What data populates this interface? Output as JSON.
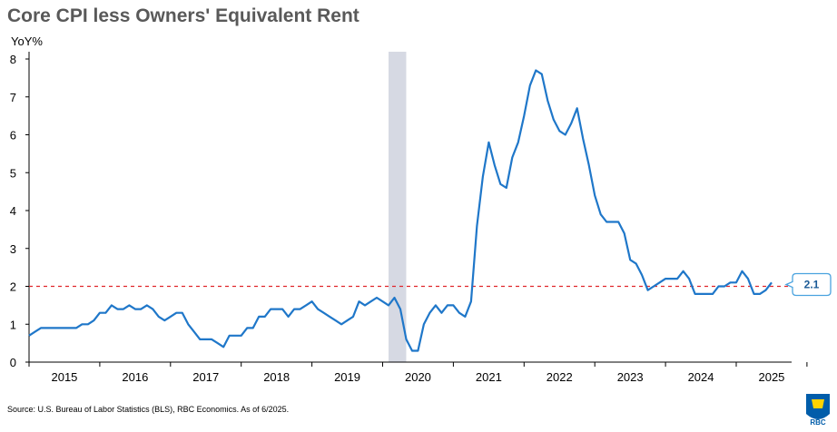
{
  "title": "Core CPI less Owners' Equivalent Rent",
  "source": "Source: U.S. Bureau of Labor Statistics (BLS), RBC Economics. As of 6/2025.",
  "logo_text": "RBC",
  "colors": {
    "line": "#1f77c9",
    "reference": "#e0262b",
    "recession": "#d6d9e3",
    "callout_border": "#4aa3df",
    "callout_text": "#1a5a96"
  },
  "chart_data": {
    "type": "line",
    "title": "Core CPI less Owners' Equivalent Rent",
    "ylabel": "YoY%",
    "xlabel": "",
    "ylim": [
      0,
      8
    ],
    "yticks": [
      "0",
      "1",
      "2",
      "3",
      "4",
      "5",
      "6",
      "7",
      "8"
    ],
    "xticks": [
      "2015",
      "2016",
      "2017",
      "2018",
      "2019",
      "2020",
      "2021",
      "2022",
      "2023",
      "2024",
      "2025"
    ],
    "grid": false,
    "shaded_region": {
      "start": "2020-02",
      "end": "2020-04"
    },
    "reference_line": {
      "value": 2,
      "label": "2.1"
    },
    "series": [
      {
        "start": "2015-01",
        "frequency": "monthly",
        "values": [
          0.7,
          0.8,
          0.9,
          0.9,
          0.9,
          0.9,
          0.9,
          0.9,
          0.9,
          1.0,
          1.0,
          1.1,
          1.3,
          1.3,
          1.5,
          1.4,
          1.4,
          1.5,
          1.4,
          1.4,
          1.5,
          1.4,
          1.2,
          1.1,
          1.2,
          1.3,
          1.3,
          1.0,
          0.8,
          0.6,
          0.6,
          0.6,
          0.5,
          0.4,
          0.7,
          0.7,
          0.7,
          0.9,
          0.9,
          1.2,
          1.2,
          1.4,
          1.4,
          1.4,
          1.2,
          1.4,
          1.4,
          1.5,
          1.6,
          1.4,
          1.3,
          1.2,
          1.1,
          1.0,
          1.1,
          1.2,
          1.6,
          1.5,
          1.6,
          1.7,
          1.6,
          1.5,
          1.7,
          1.4,
          0.6,
          0.3,
          0.3,
          1.0,
          1.3,
          1.5,
          1.3,
          1.5,
          1.5,
          1.3,
          1.2,
          1.6,
          3.6,
          4.9,
          5.8,
          5.2,
          4.7,
          4.6,
          5.4,
          5.8,
          6.5,
          7.3,
          7.7,
          7.6,
          6.9,
          6.4,
          6.1,
          6.0,
          6.3,
          6.7,
          5.9,
          5.2,
          4.4,
          3.9,
          3.7,
          3.7,
          3.7,
          3.4,
          2.7,
          2.6,
          2.3,
          1.9,
          2.0,
          2.1,
          2.2,
          2.2,
          2.2,
          2.4,
          2.2,
          1.8,
          1.8,
          1.8,
          1.8,
          2.0,
          2.0,
          2.1,
          2.1,
          2.4,
          2.2,
          1.8,
          1.8,
          1.9,
          2.1
        ]
      }
    ]
  }
}
